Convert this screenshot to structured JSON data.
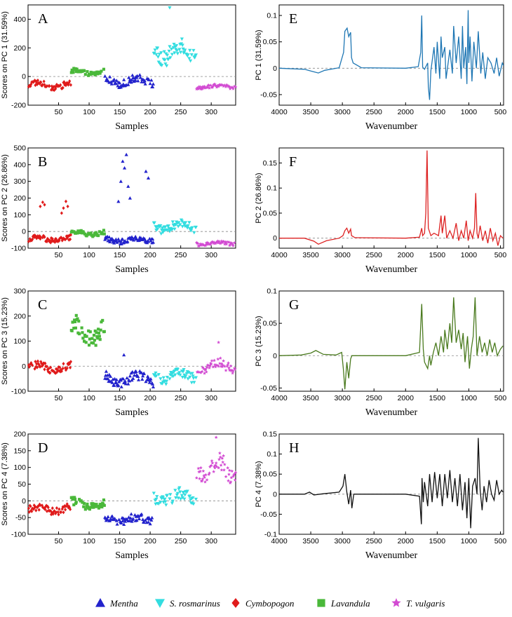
{
  "legend": [
    {
      "name": "Mentha",
      "color": "#2222cc",
      "marker": "triangle-up"
    },
    {
      "name": "S. rosmarinus",
      "color": "#33dde0",
      "marker": "triangle-down"
    },
    {
      "name": "Cymbopogon",
      "color": "#e01b1b",
      "marker": "diamond"
    },
    {
      "name": "Lavandula",
      "color": "#4ab83a",
      "marker": "square"
    },
    {
      "name": "T. vulgaris",
      "color": "#d24bd2",
      "marker": "star"
    }
  ],
  "chart_data": [
    {
      "id": "A",
      "type": "scatter",
      "xlabel": "Samples",
      "ylabel": "Scores on PC 1 (31.59%)",
      "xlim": [
        0,
        340
      ],
      "ylim": [
        -200,
        500
      ],
      "xticks": [
        50,
        100,
        150,
        200,
        250,
        300
      ],
      "yticks": [
        -200,
        0,
        200,
        400
      ],
      "groups": [
        {
          "name": "Cymbopogon",
          "x": [
            1,
            70
          ],
          "base": -60,
          "amp": 35,
          "spread": 20
        },
        {
          "name": "Lavandula",
          "x": [
            71,
            125
          ],
          "base": 30,
          "amp": 25,
          "spread": 15
        },
        {
          "name": "Mentha",
          "x": [
            126,
            205
          ],
          "base": -30,
          "amp": 45,
          "spread": 25
        },
        {
          "name": "S. rosmarinus",
          "x": [
            206,
            275
          ],
          "base": 170,
          "amp": 110,
          "spread": 60
        },
        {
          "name": "T. vulgaris",
          "x": [
            276,
            340
          ],
          "base": -70,
          "amp": 15,
          "spread": 12
        }
      ],
      "outliers": [
        {
          "name": "S. rosmarinus",
          "x": 232,
          "y": 480
        }
      ]
    },
    {
      "id": "B",
      "type": "scatter",
      "xlabel": "Samples",
      "ylabel": "Scores on PC 2 (26.86%)",
      "xlim": [
        0,
        340
      ],
      "ylim": [
        -100,
        500
      ],
      "xticks": [
        50,
        100,
        150,
        200,
        250,
        300
      ],
      "yticks": [
        -100,
        0,
        100,
        200,
        300,
        400,
        500
      ],
      "groups": [
        {
          "name": "Cymbopogon",
          "x": [
            1,
            70
          ],
          "base": -45,
          "amp": 20,
          "spread": 15
        },
        {
          "name": "Lavandula",
          "x": [
            71,
            125
          ],
          "base": -10,
          "amp": 20,
          "spread": 12
        },
        {
          "name": "Mentha",
          "x": [
            126,
            205
          ],
          "base": -50,
          "amp": 20,
          "spread": 15
        },
        {
          "name": "S. rosmarinus",
          "x": [
            206,
            275
          ],
          "base": 30,
          "amp": 40,
          "spread": 25
        },
        {
          "name": "T. vulgaris",
          "x": [
            276,
            340
          ],
          "base": -70,
          "amp": 15,
          "spread": 10
        }
      ],
      "outliers": [
        {
          "name": "Cymbopogon",
          "x": 20,
          "y": 150
        },
        {
          "name": "Cymbopogon",
          "x": 24,
          "y": 175
        },
        {
          "name": "Cymbopogon",
          "x": 27,
          "y": 160
        },
        {
          "name": "Cymbopogon",
          "x": 55,
          "y": 110
        },
        {
          "name": "Cymbopogon",
          "x": 58,
          "y": 140
        },
        {
          "name": "Cymbopogon",
          "x": 62,
          "y": 180
        },
        {
          "name": "Cymbopogon",
          "x": 65,
          "y": 150
        },
        {
          "name": "Mentha",
          "x": 148,
          "y": 180
        },
        {
          "name": "Mentha",
          "x": 152,
          "y": 300
        },
        {
          "name": "Mentha",
          "x": 155,
          "y": 420
        },
        {
          "name": "Mentha",
          "x": 158,
          "y": 380
        },
        {
          "name": "Mentha",
          "x": 161,
          "y": 460
        },
        {
          "name": "Mentha",
          "x": 164,
          "y": 270
        },
        {
          "name": "Mentha",
          "x": 167,
          "y": 200
        },
        {
          "name": "Mentha",
          "x": 193,
          "y": 360
        },
        {
          "name": "Mentha",
          "x": 197,
          "y": 320
        }
      ]
    },
    {
      "id": "C",
      "type": "scatter",
      "xlabel": "Samples",
      "ylabel": "Scores on PC 3 (15.23%)",
      "xlim": [
        0,
        340
      ],
      "ylim": [
        -100,
        300
      ],
      "xticks": [
        50,
        100,
        150,
        200,
        250,
        300
      ],
      "yticks": [
        -100,
        0,
        100,
        200,
        300
      ],
      "groups": [
        {
          "name": "Cymbopogon",
          "x": [
            1,
            70
          ],
          "base": -5,
          "amp": 20,
          "spread": 15
        },
        {
          "name": "Lavandula",
          "x": [
            71,
            125
          ],
          "base": 140,
          "amp": 60,
          "spread": 35
        },
        {
          "name": "Mentha",
          "x": [
            126,
            205
          ],
          "base": -50,
          "amp": 30,
          "spread": 20
        },
        {
          "name": "S. rosmarinus",
          "x": [
            206,
            275
          ],
          "base": -40,
          "amp": 30,
          "spread": 20
        },
        {
          "name": "T. vulgaris",
          "x": [
            276,
            340
          ],
          "base": 0,
          "amp": 30,
          "spread": 20
        }
      ],
      "outliers": [
        {
          "name": "T. vulgaris",
          "x": 312,
          "y": 95
        },
        {
          "name": "Mentha",
          "x": 157,
          "y": 45
        }
      ]
    },
    {
      "id": "D",
      "type": "scatter",
      "xlabel": "Samples",
      "ylabel": "Scores on PC 4 (7.38%)",
      "xlim": [
        0,
        340
      ],
      "ylim": [
        -100,
        200
      ],
      "xticks": [
        50,
        100,
        150,
        200,
        250,
        300
      ],
      "yticks": [
        -100,
        -50,
        0,
        50,
        100,
        150,
        200
      ],
      "groups": [
        {
          "name": "Cymbopogon",
          "x": [
            1,
            70
          ],
          "base": -25,
          "amp": 15,
          "spread": 12
        },
        {
          "name": "Lavandula",
          "x": [
            71,
            125
          ],
          "base": -10,
          "amp": 20,
          "spread": 12
        },
        {
          "name": "Mentha",
          "x": [
            126,
            205
          ],
          "base": -55,
          "amp": 15,
          "spread": 12
        },
        {
          "name": "S. rosmarinus",
          "x": [
            206,
            275
          ],
          "base": 10,
          "amp": 25,
          "spread": 18
        },
        {
          "name": "T. vulgaris",
          "x": [
            276,
            340
          ],
          "base": 95,
          "amp": 45,
          "spread": 30
        }
      ],
      "outliers": [
        {
          "name": "T. vulgaris",
          "x": 308,
          "y": 190
        }
      ]
    },
    {
      "id": "E",
      "type": "line",
      "xlabel": "Wavenumber",
      "ylabel": "PC 1 (31.59%)",
      "color": "#1f77b4",
      "xlim": [
        4000,
        450
      ],
      "ylim": [
        -0.07,
        0.12
      ],
      "xticks": [
        4000,
        3500,
        3000,
        2500,
        2000,
        1500,
        1000,
        500
      ],
      "yticks": [
        -0.05,
        0,
        0.05,
        0.1
      ],
      "x": [
        4000,
        3600,
        3480,
        3380,
        3280,
        3050,
        2980,
        2960,
        2925,
        2900,
        2870,
        2855,
        2830,
        2700,
        2000,
        1800,
        1760,
        1745,
        1730,
        1700,
        1650,
        1640,
        1620,
        1600,
        1550,
        1520,
        1500,
        1460,
        1440,
        1420,
        1380,
        1360,
        1300,
        1260,
        1240,
        1200,
        1160,
        1120,
        1100,
        1080,
        1050,
        1030,
        1010,
        1000,
        980,
        950,
        920,
        880,
        850,
        810,
        780,
        740,
        700,
        650,
        600,
        560,
        520,
        470,
        450
      ],
      "y": [
        0,
        -0.002,
        -0.006,
        -0.009,
        -0.004,
        0.001,
        0.03,
        0.07,
        0.076,
        0.06,
        0.068,
        0.02,
        0.01,
        0.001,
        0,
        0.003,
        0.03,
        0.1,
        0.002,
        -0.002,
        0.01,
        -0.035,
        -0.06,
        -0.005,
        0.04,
        -0.01,
        0.05,
        -0.02,
        0.06,
        0.02,
        0.04,
        -0.02,
        0.035,
        -0.01,
        0.08,
        0.01,
        0.06,
        -0.02,
        0.08,
        0.0,
        0.04,
        -0.03,
        0.11,
        0.01,
        0.06,
        -0.025,
        0.05,
        0.0,
        0.07,
        -0.01,
        0.03,
        -0.02,
        0.02,
        0.01,
        -0.01,
        0.02,
        -0.015,
        0.01,
        0.005
      ]
    },
    {
      "id": "F",
      "type": "line",
      "xlabel": "Wavenumber",
      "ylabel": "PC 2 (26.86%)",
      "color": "#dd2222",
      "xlim": [
        4000,
        450
      ],
      "ylim": [
        -0.02,
        0.18
      ],
      "xticks": [
        4000,
        3500,
        3000,
        2500,
        2000,
        1500,
        1000,
        500
      ],
      "yticks": [
        0,
        0.05,
        0.1,
        0.15
      ],
      "x": [
        4000,
        3600,
        3450,
        3380,
        3250,
        3050,
        2990,
        2960,
        2930,
        2900,
        2870,
        2855,
        2800,
        2000,
        1780,
        1745,
        1730,
        1700,
        1680,
        1660,
        1640,
        1600,
        1550,
        1480,
        1440,
        1420,
        1380,
        1350,
        1300,
        1250,
        1200,
        1160,
        1120,
        1080,
        1040,
        1010,
        980,
        940,
        910,
        890,
        870,
        850,
        820,
        780,
        740,
        700,
        660,
        620,
        580,
        540,
        500,
        460
      ],
      "y": [
        0,
        0,
        -0.006,
        -0.012,
        -0.005,
        0,
        0.005,
        0.015,
        0.02,
        0.01,
        0.018,
        0.005,
        0.001,
        0,
        0.002,
        0.02,
        0.005,
        0.01,
        0.05,
        0.175,
        0.02,
        0.005,
        0.01,
        0.005,
        0.045,
        0.01,
        0.045,
        0.0,
        0.015,
        0.0,
        0.03,
        -0.005,
        0.015,
        0.0,
        0.035,
        -0.005,
        0.015,
        0.0,
        0.02,
        0.09,
        0.01,
        0.0,
        0.025,
        -0.005,
        0.015,
        -0.01,
        0.02,
        -0.005,
        0.01,
        -0.015,
        0.005,
        0.0
      ]
    },
    {
      "id": "G",
      "type": "line",
      "xlabel": "Wavenumber",
      "ylabel": "PC 3 (15.23%)",
      "color": "#4a7a1e",
      "xlim": [
        4000,
        450
      ],
      "ylim": [
        -0.055,
        0.1
      ],
      "xticks": [
        4000,
        3500,
        3000,
        2500,
        2000,
        1500,
        1000,
        500
      ],
      "yticks": [
        -0.05,
        0,
        0.05,
        0.1
      ],
      "x": [
        4000,
        3650,
        3500,
        3420,
        3300,
        3100,
        3010,
        2985,
        2960,
        2930,
        2900,
        2870,
        2850,
        2800,
        2000,
        1780,
        1745,
        1720,
        1700,
        1650,
        1620,
        1600,
        1560,
        1520,
        1480,
        1440,
        1400,
        1380,
        1340,
        1300,
        1270,
        1240,
        1200,
        1160,
        1120,
        1090,
        1060,
        1020,
        990,
        960,
        930,
        900,
        870,
        830,
        790,
        750,
        710,
        670,
        630,
        590,
        550,
        500,
        460
      ],
      "y": [
        0,
        0.001,
        0.004,
        0.008,
        0.002,
        0.001,
        0.005,
        -0.02,
        -0.052,
        -0.01,
        -0.035,
        -0.005,
        0.0,
        0.0,
        0.0,
        0.005,
        0.08,
        0.01,
        -0.01,
        -0.02,
        0.0,
        -0.015,
        0.005,
        0.02,
        0.0,
        0.03,
        0.005,
        0.04,
        0.01,
        0.05,
        0.02,
        0.09,
        0.02,
        0.04,
        0.01,
        0.035,
        -0.01,
        0.03,
        -0.02,
        0.01,
        0.03,
        0.09,
        0.0,
        0.03,
        0.005,
        0.02,
        0.0,
        0.025,
        0.005,
        0.02,
        0.0,
        0.01,
        0.015
      ]
    },
    {
      "id": "H",
      "type": "line",
      "xlabel": "Wavenumber",
      "ylabel": "PC 4 (7.38%)",
      "color": "#111111",
      "xlim": [
        4000,
        450
      ],
      "ylim": [
        -0.1,
        0.15
      ],
      "xticks": [
        4000,
        3500,
        3000,
        2500,
        2000,
        1500,
        1000,
        500
      ],
      "yticks": [
        -0.1,
        -0.05,
        0,
        0.05,
        0.1,
        0.15
      ],
      "x": [
        4000,
        3600,
        3520,
        3450,
        3300,
        3050,
        2990,
        2960,
        2930,
        2900,
        2870,
        2850,
        2820,
        2700,
        2000,
        1780,
        1750,
        1740,
        1720,
        1700,
        1650,
        1620,
        1580,
        1540,
        1500,
        1460,
        1420,
        1380,
        1340,
        1300,
        1260,
        1220,
        1180,
        1140,
        1100,
        1060,
        1030,
        1000,
        970,
        940,
        900,
        870,
        850,
        820,
        790,
        760,
        720,
        680,
        640,
        600,
        560,
        520,
        480,
        460
      ],
      "y": [
        0,
        0,
        0.005,
        -0.002,
        0.001,
        0.005,
        0.02,
        0.05,
        0.005,
        -0.025,
        0.01,
        -0.035,
        0.0,
        0.0,
        0.0,
        -0.005,
        -0.075,
        0.04,
        -0.02,
        0.03,
        -0.03,
        0.05,
        -0.02,
        0.055,
        -0.01,
        0.05,
        -0.03,
        0.05,
        -0.01,
        0.06,
        -0.02,
        0.04,
        -0.03,
        0.05,
        -0.04,
        0.03,
        -0.06,
        0.04,
        -0.085,
        0.02,
        0.04,
        0.0,
        0.14,
        0.01,
        -0.04,
        0.02,
        -0.02,
        0.035,
        0.0,
        -0.015,
        0.035,
        0.0,
        0.01,
        0.005
      ]
    }
  ]
}
